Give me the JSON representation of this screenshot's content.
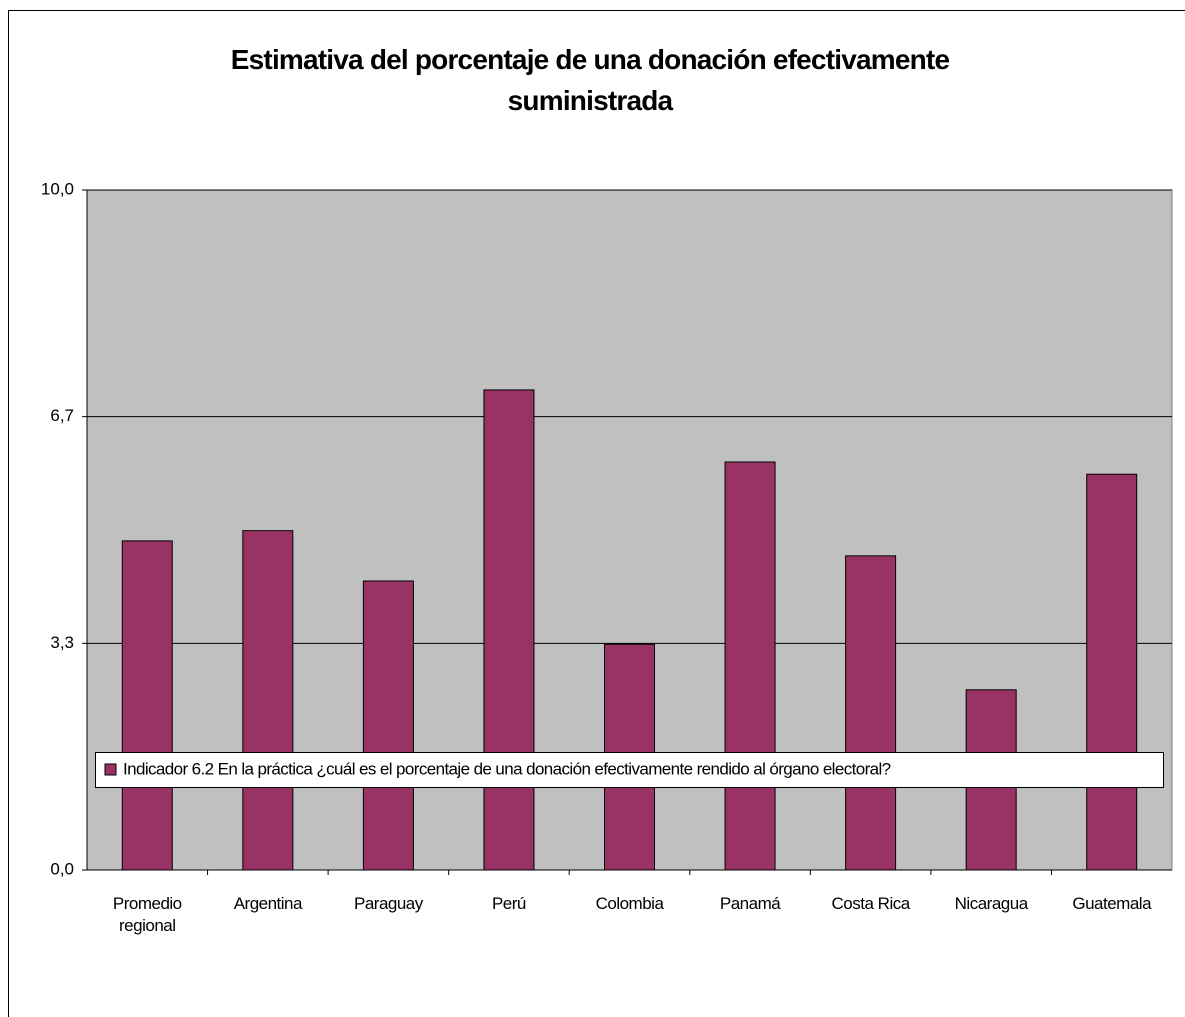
{
  "chart_data": {
    "type": "bar",
    "title": "Estimativa del porcentaje de una donación efectivamente suministrada",
    "categories": [
      "Promedio regional",
      "Argentina",
      "Paraguay",
      "Perú",
      "Colombia",
      "Panamá",
      "Costa Rica",
      "Nicaragua",
      "Guatemala"
    ],
    "series": [
      {
        "name": "Indicador 6.2 En la práctica ¿cuál es el porcentaje de una donación efectivamente rendido al órgano electoral?",
        "color": "#993366",
        "values": [
          4.84,
          4.99,
          4.25,
          7.06,
          3.32,
          6.0,
          4.62,
          2.65,
          5.82
        ]
      }
    ],
    "ylim": [
      0,
      10
    ],
    "yticks": [
      {
        "value": 0,
        "label": "0,0"
      },
      {
        "value": 3.333,
        "label": "3,3"
      },
      {
        "value": 6.667,
        "label": "6,7"
      },
      {
        "value": 10,
        "label": "10,0"
      }
    ],
    "grid": true,
    "legend": "bottom"
  }
}
